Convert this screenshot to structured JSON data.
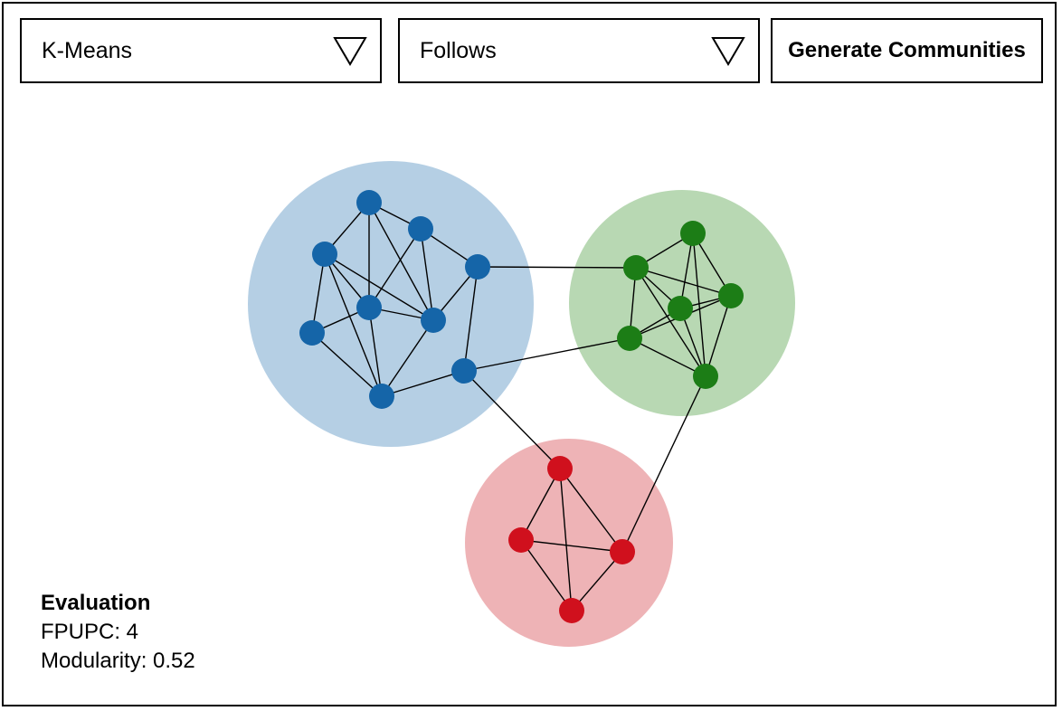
{
  "controls": {
    "algorithm_dropdown": {
      "selected": "K-Means",
      "icon": "triangle-down-icon"
    },
    "relation_dropdown": {
      "selected": "Follows",
      "icon": "triangle-down-icon"
    },
    "generate_button": {
      "label": "Generate Communities"
    }
  },
  "evaluation": {
    "title": "Evaluation",
    "fpupc_label": "FPUPC: 4",
    "modularity_label": "Modularity: 0.52"
  },
  "graph": {
    "communities": [
      {
        "id": "blue",
        "fill": "#b5cfe4",
        "node_color": "#1565a8"
      },
      {
        "id": "green",
        "fill": "#b8d8b3",
        "node_color": "#1c7d16"
      },
      {
        "id": "red",
        "fill": "#eeb3b6",
        "node_color": "#d0101d"
      }
    ],
    "nodes": [
      {
        "id": "b1",
        "community": "blue"
      },
      {
        "id": "b2",
        "community": "blue"
      },
      {
        "id": "b3",
        "community": "blue"
      },
      {
        "id": "b4",
        "community": "blue"
      },
      {
        "id": "b5",
        "community": "blue"
      },
      {
        "id": "b6",
        "community": "blue"
      },
      {
        "id": "b7",
        "community": "blue"
      },
      {
        "id": "b8",
        "community": "blue"
      },
      {
        "id": "b9",
        "community": "blue"
      },
      {
        "id": "g1",
        "community": "green"
      },
      {
        "id": "g2",
        "community": "green"
      },
      {
        "id": "g3",
        "community": "green"
      },
      {
        "id": "g4",
        "community": "green"
      },
      {
        "id": "g5",
        "community": "green"
      },
      {
        "id": "g6",
        "community": "green"
      },
      {
        "id": "r1",
        "community": "red"
      },
      {
        "id": "r2",
        "community": "red"
      },
      {
        "id": "r3",
        "community": "red"
      },
      {
        "id": "r4",
        "community": "red"
      }
    ],
    "edges": [
      [
        "b1",
        "b2"
      ],
      [
        "b1",
        "b3"
      ],
      [
        "b1",
        "b5"
      ],
      [
        "b1",
        "b6"
      ],
      [
        "b2",
        "b5"
      ],
      [
        "b2",
        "b6"
      ],
      [
        "b2",
        "b4"
      ],
      [
        "b3",
        "b5"
      ],
      [
        "b3",
        "b7"
      ],
      [
        "b3",
        "b8"
      ],
      [
        "b3",
        "b6"
      ],
      [
        "b4",
        "b6"
      ],
      [
        "b4",
        "b9"
      ],
      [
        "b5",
        "b7"
      ],
      [
        "b5",
        "b6"
      ],
      [
        "b5",
        "b8"
      ],
      [
        "b6",
        "b8"
      ],
      [
        "b7",
        "b8"
      ],
      [
        "b8",
        "b9"
      ],
      [
        "b4",
        "g2"
      ],
      [
        "b9",
        "g5"
      ],
      [
        "b9",
        "r1"
      ],
      [
        "g6",
        "r3"
      ],
      [
        "g1",
        "g2"
      ],
      [
        "g1",
        "g3"
      ],
      [
        "g1",
        "g4"
      ],
      [
        "g1",
        "g6"
      ],
      [
        "g2",
        "g3"
      ],
      [
        "g2",
        "g4"
      ],
      [
        "g2",
        "g5"
      ],
      [
        "g2",
        "g6"
      ],
      [
        "g3",
        "g4"
      ],
      [
        "g3",
        "g5"
      ],
      [
        "g3",
        "g6"
      ],
      [
        "g4",
        "g5"
      ],
      [
        "g4",
        "g6"
      ],
      [
        "g5",
        "g6"
      ],
      [
        "r1",
        "r2"
      ],
      [
        "r1",
        "r3"
      ],
      [
        "r1",
        "r4"
      ],
      [
        "r2",
        "r3"
      ],
      [
        "r2",
        "r4"
      ],
      [
        "r3",
        "r4"
      ]
    ]
  }
}
